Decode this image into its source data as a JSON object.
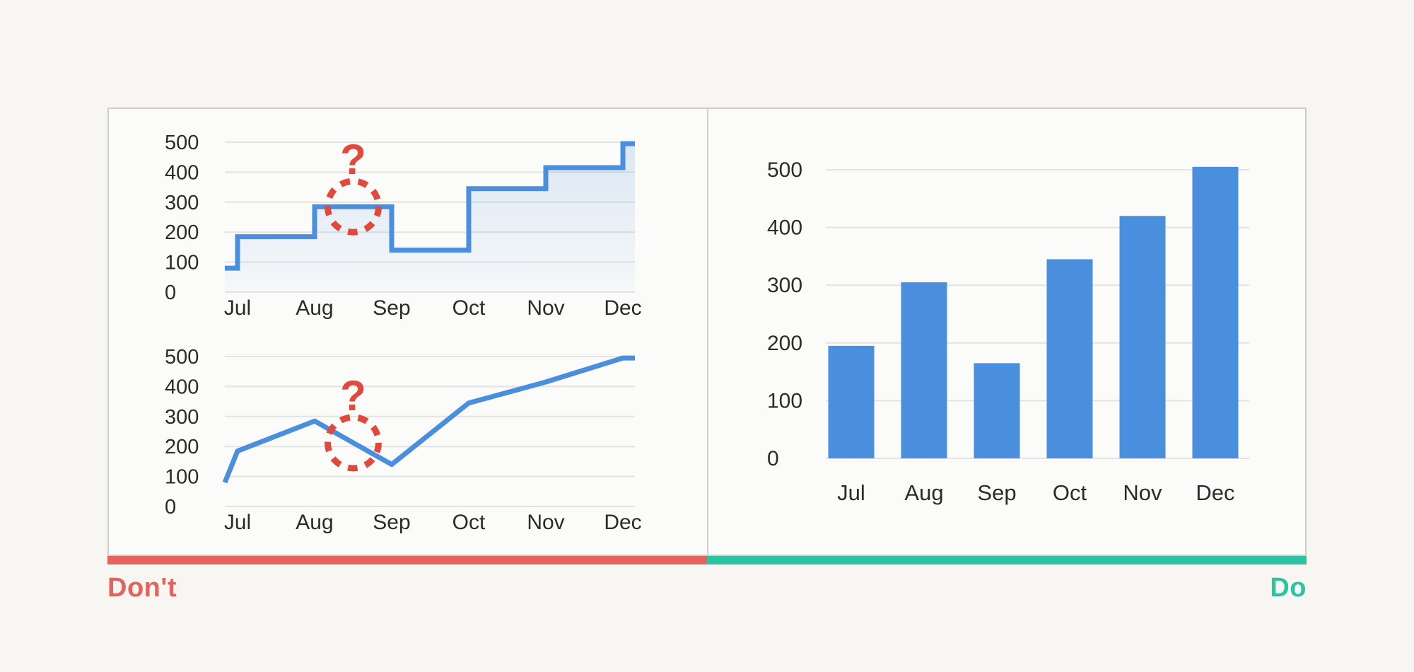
{
  "labels": {
    "dont": "Don't",
    "do": "Do"
  },
  "colors": {
    "page_bg": "#f7f6f3",
    "panel_bg": "#fbfbf9",
    "panel_border": "#d0cecb",
    "series_blue": "#4a8ede",
    "area_fill_top": "rgba(74,142,222,0.18)",
    "area_fill_bottom": "rgba(74,142,222,0.03)",
    "grid": "#e4e3e1",
    "axis_text": "#2b2b2b",
    "annotation_red": "#e2493d",
    "dont_accent": "#e4635a",
    "do_accent": "#2cc3a1"
  },
  "chart_data": [
    {
      "id": "dont-step",
      "type": "step-area",
      "panel": "dont",
      "categories": [
        "Jul",
        "Aug",
        "Sep",
        "Oct",
        "Nov",
        "Dec"
      ],
      "values": [
        185,
        285,
        140,
        345,
        415,
        495
      ],
      "leading_edge_value": 80,
      "y_ticks": [
        0,
        100,
        200,
        300,
        400,
        500
      ],
      "ylim": [
        0,
        500
      ],
      "grid": true,
      "legend": "none",
      "annotation": {
        "symbol": "?",
        "style": "dashed-circle",
        "between": [
          "Aug",
          "Sep"
        ]
      }
    },
    {
      "id": "dont-line",
      "type": "line",
      "panel": "dont",
      "categories": [
        "Jul",
        "Aug",
        "Sep",
        "Oct",
        "Nov",
        "Dec"
      ],
      "values": [
        185,
        285,
        140,
        345,
        415,
        495
      ],
      "leading_edge_value": 80,
      "y_ticks": [
        0,
        100,
        200,
        300,
        400,
        500
      ],
      "ylim": [
        0,
        500
      ],
      "grid": true,
      "legend": "none",
      "annotation": {
        "symbol": "?",
        "style": "dashed-circle",
        "between": [
          "Aug",
          "Sep"
        ]
      }
    },
    {
      "id": "do-bar",
      "type": "bar",
      "panel": "do",
      "categories": [
        "Jul",
        "Aug",
        "Sep",
        "Oct",
        "Nov",
        "Dec"
      ],
      "values": [
        195,
        305,
        165,
        345,
        420,
        505
      ],
      "y_ticks": [
        0,
        100,
        200,
        300,
        400,
        500
      ],
      "ylim": [
        0,
        500
      ],
      "grid": true,
      "legend": "none"
    }
  ]
}
